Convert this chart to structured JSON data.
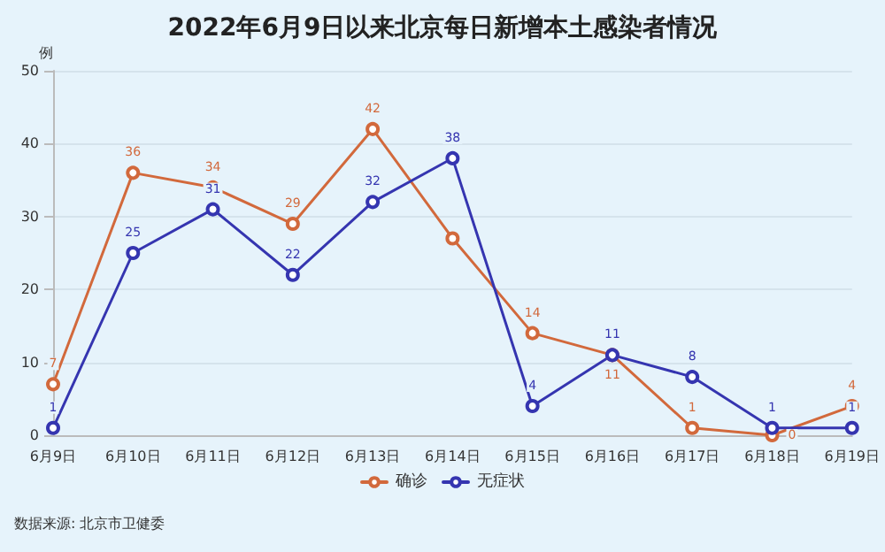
{
  "chart_data": {
    "type": "line",
    "title": "2022年6月9日以来北京每日新增本土感染者情况",
    "ylabel": "例",
    "categories": [
      "6月9日",
      "6月10日",
      "6月11日",
      "6月12日",
      "6月13日",
      "6月14日",
      "6月15日",
      "6月16日",
      "6月17日",
      "6月18日",
      "6月19日"
    ],
    "series": [
      {
        "name": "确诊",
        "color": "#d2693c",
        "values": [
          7,
          36,
          34,
          29,
          42,
          27,
          14,
          11,
          1,
          0,
          4
        ],
        "value_labels": [
          "7",
          "36",
          "34",
          "29",
          "42",
          null,
          "14",
          "11",
          "1",
          "0",
          "4"
        ]
      },
      {
        "name": "无症状",
        "color": "#3535b0",
        "values": [
          1,
          25,
          31,
          22,
          32,
          38,
          4,
          11,
          8,
          1,
          1
        ],
        "value_labels": [
          "1",
          "25",
          "31",
          "22",
          "32",
          "38",
          "4",
          "11",
          "8",
          "1",
          "1"
        ]
      }
    ],
    "ylim": [
      0,
      50
    ],
    "yticks": [
      0,
      10,
      20,
      30,
      40,
      50
    ],
    "grid": "y",
    "legend": "bottom",
    "marker": "circle",
    "line_style": "solid",
    "annotations": [
      "数据来源: 北京市卫健委"
    ]
  }
}
